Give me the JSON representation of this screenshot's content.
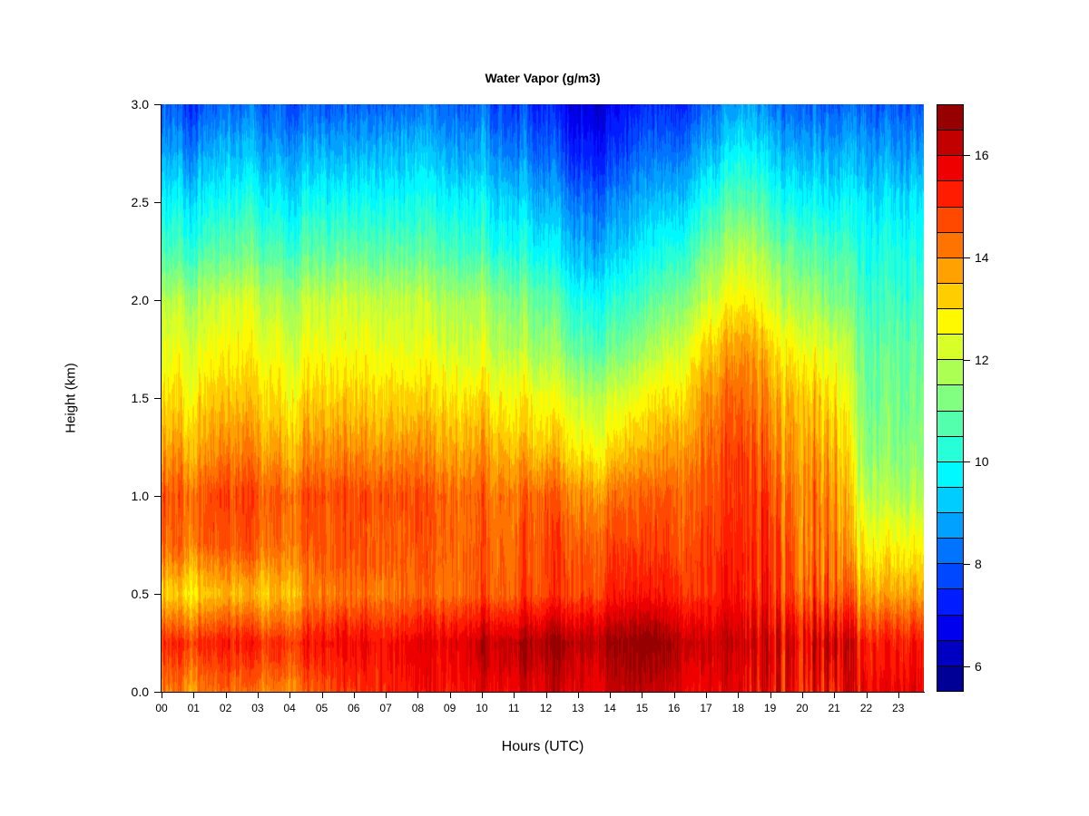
{
  "chart_data": {
    "type": "heatmap",
    "title": "Water Vapor (g/m3)",
    "xlabel": "Hours (UTC)",
    "ylabel": "Height (km)",
    "x_range": [
      0,
      23.8
    ],
    "y_range": [
      0,
      3
    ],
    "value_range": [
      5.5,
      17
    ],
    "level_step": 0.5,
    "colormap": "jet",
    "legend_position": "right",
    "x_tick_labels": [
      "00",
      "01",
      "02",
      "03",
      "04",
      "05",
      "06",
      "07",
      "08",
      "09",
      "10",
      "11",
      "12",
      "13",
      "14",
      "15",
      "16",
      "17",
      "18",
      "19",
      "20",
      "21",
      "22",
      "23"
    ],
    "y_tick_labels": [
      "0.0",
      "0.5",
      "1.0",
      "1.5",
      "2.0",
      "2.5",
      "3.0"
    ],
    "colorbar_tick_values": [
      6,
      8,
      10,
      12,
      14,
      16
    ],
    "grid": {
      "hours_utc": [
        0,
        1,
        2,
        3,
        4,
        5,
        6,
        7,
        8,
        9,
        10,
        11,
        12,
        13,
        14,
        15,
        16,
        17,
        18,
        19,
        20,
        21,
        22,
        23
      ],
      "heights_km": [
        0,
        0.25,
        0.5,
        0.75,
        1,
        1.25,
        1.5,
        1.75,
        2,
        2.25,
        2.5,
        2.75,
        3
      ],
      "water_vapor_g_m3": [
        [
          14.0,
          14.0,
          14.1,
          14.1,
          14.2,
          14.4,
          15.0,
          15.3,
          15.5,
          15.6,
          15.8,
          15.9,
          16.0,
          16.0,
          16.0,
          16.0,
          16.0,
          15.9,
          15.8,
          15.8,
          15.8,
          15.8,
          15.5,
          15.4
        ],
        [
          15.0,
          15.0,
          15.0,
          15.1,
          15.2,
          15.3,
          15.5,
          15.6,
          15.8,
          16.0,
          16.2,
          16.4,
          16.6,
          16.6,
          16.5,
          16.6,
          16.6,
          16.4,
          16.2,
          16.0,
          16.2,
          16.4,
          15.2,
          15.0
        ],
        [
          13.0,
          13.0,
          13.1,
          13.2,
          13.6,
          14.0,
          14.2,
          14.4,
          14.4,
          14.5,
          14.6,
          14.7,
          14.9,
          15.0,
          15.0,
          15.1,
          15.2,
          15.4,
          15.4,
          15.2,
          15.0,
          14.8,
          13.6,
          13.4
        ],
        [
          14.2,
          14.3,
          14.3,
          14.4,
          14.3,
          14.4,
          14.6,
          14.7,
          14.6,
          14.6,
          14.6,
          14.6,
          14.8,
          14.8,
          14.6,
          14.6,
          14.8,
          15.2,
          15.2,
          15.0,
          14.6,
          14.4,
          12.6,
          12.4
        ],
        [
          14.4,
          14.5,
          14.5,
          14.6,
          14.5,
          14.5,
          14.7,
          14.8,
          14.7,
          14.6,
          14.5,
          14.4,
          14.6,
          14.2,
          14.0,
          14.2,
          14.5,
          15.0,
          15.0,
          14.8,
          14.4,
          14.2,
          11.8,
          11.5
        ],
        [
          13.5,
          13.6,
          13.7,
          13.8,
          13.7,
          13.7,
          13.9,
          14.0,
          13.9,
          13.8,
          13.7,
          13.6,
          13.4,
          13.0,
          12.8,
          13.2,
          13.8,
          14.6,
          14.8,
          14.4,
          14.0,
          13.8,
          11.2,
          11.0
        ],
        [
          12.8,
          12.9,
          13.0,
          13.1,
          13.0,
          13.0,
          13.2,
          13.3,
          13.2,
          13.1,
          13.0,
          12.9,
          12.6,
          12.2,
          12.0,
          12.4,
          13.0,
          14.2,
          14.4,
          14.0,
          13.6,
          13.2,
          10.9,
          10.8
        ],
        [
          12.2,
          12.3,
          12.4,
          12.5,
          12.4,
          12.3,
          12.5,
          12.6,
          12.5,
          12.4,
          12.2,
          12.0,
          11.7,
          11.0,
          10.8,
          11.2,
          12.2,
          13.5,
          13.8,
          13.4,
          12.8,
          12.4,
          10.7,
          10.6
        ],
        [
          11.6,
          11.7,
          11.8,
          12.0,
          11.9,
          11.8,
          12.0,
          12.1,
          12.0,
          11.9,
          11.7,
          11.4,
          11.0,
          10.2,
          10.0,
          10.3,
          11.2,
          12.4,
          12.8,
          12.4,
          11.8,
          11.4,
          10.3,
          10.2
        ],
        [
          10.4,
          10.5,
          10.6,
          10.8,
          10.7,
          10.6,
          10.8,
          11.0,
          10.9,
          10.8,
          10.5,
          10.3,
          9.8,
          9.2,
          9.0,
          9.4,
          10.2,
          11.4,
          11.9,
          11.5,
          11.0,
          10.7,
          9.9,
          9.8
        ],
        [
          9.6,
          9.6,
          9.7,
          9.9,
          9.8,
          9.7,
          9.9,
          10.1,
          10.0,
          10.0,
          9.7,
          9.5,
          9.0,
          8.4,
          8.2,
          8.6,
          9.2,
          10.4,
          10.8,
          10.5,
          10.0,
          9.8,
          9.4,
          9.3
        ],
        [
          8.6,
          8.6,
          8.7,
          8.9,
          8.9,
          8.7,
          8.9,
          9.2,
          9.2,
          9.1,
          8.8,
          8.5,
          8.1,
          7.5,
          7.3,
          7.8,
          8.3,
          9.3,
          9.8,
          9.5,
          9.1,
          9.0,
          8.6,
          8.4
        ],
        [
          7.7,
          7.7,
          7.7,
          8.0,
          8.0,
          7.7,
          8.0,
          8.2,
          8.2,
          8.2,
          8.0,
          7.7,
          7.4,
          6.7,
          6.5,
          7.0,
          7.4,
          8.4,
          8.7,
          8.5,
          8.2,
          8.1,
          7.8,
          7.6
        ]
      ]
    }
  }
}
